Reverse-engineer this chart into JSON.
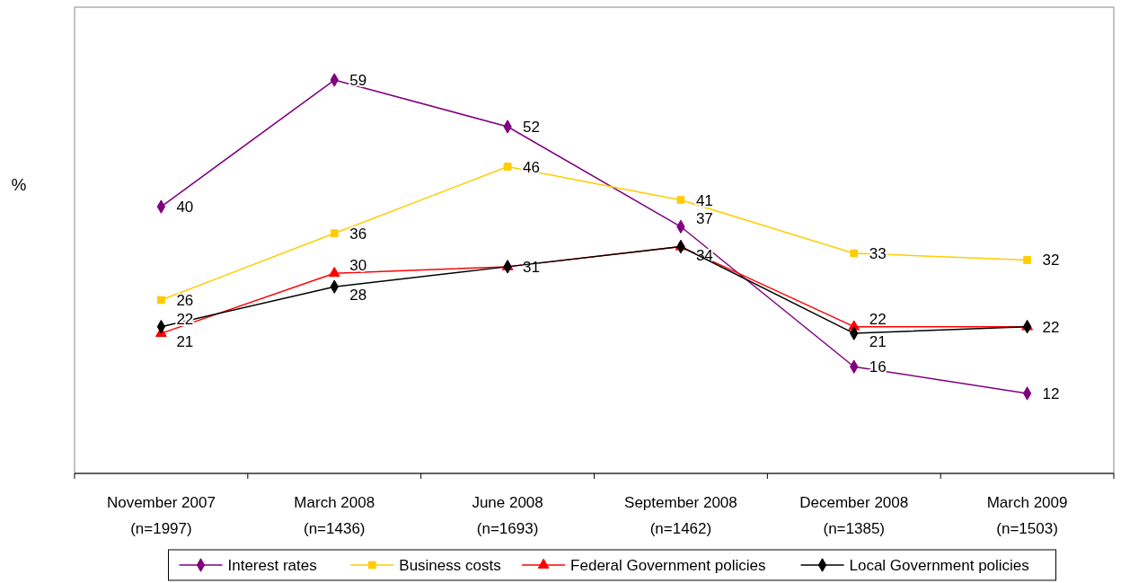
{
  "chart_data": {
    "type": "line",
    "ylabel": "%",
    "categories": [
      "November 2007\n(n=1997)",
      "March 2008\n(n=1436)",
      "June 2008\n(n=1693)",
      "September 2008\n(n=1462)",
      "December 2008\n(n=1385)",
      "March 2009\n(n=1503)"
    ],
    "series": [
      {
        "name": "Interest rates",
        "color": "#800080",
        "marker": "diamond",
        "values": [
          40,
          59,
          52,
          37,
          16,
          12
        ]
      },
      {
        "name": "Business costs",
        "color": "#ffcc00",
        "marker": "square",
        "values": [
          26,
          36,
          46,
          41,
          33,
          32
        ]
      },
      {
        "name": "Federal Government policies",
        "color": "#ff0000",
        "marker": "triangle",
        "values": [
          21,
          30,
          31,
          34,
          22,
          22
        ]
      },
      {
        "name": "Local Government policies",
        "color": "#000000",
        "marker": "diamond",
        "values": [
          22,
          28,
          31,
          34,
          21,
          22
        ],
        "value_labels": [
          "22",
          "28",
          null,
          null,
          "21",
          null
        ]
      }
    ],
    "data_labels": true,
    "legend": "bottom",
    "line_style": "solid"
  }
}
